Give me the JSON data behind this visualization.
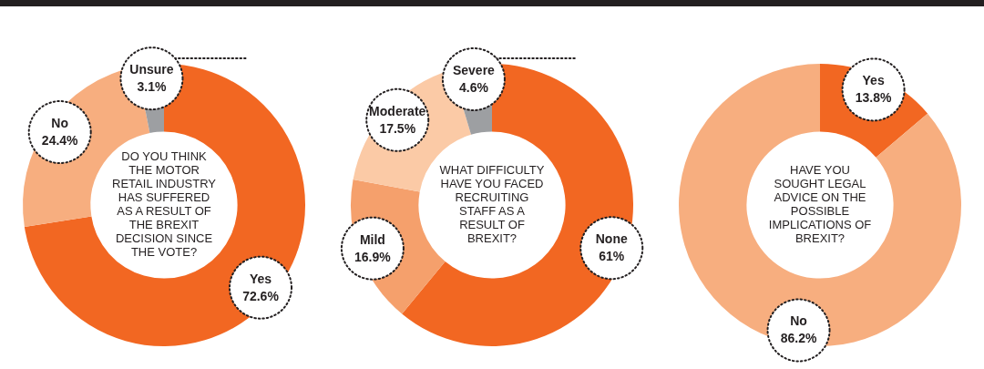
{
  "chart_data": [
    {
      "type": "donut",
      "title": "DO YOU THINK THE MOTOR RETAIL INDUSTRY HAS SUFFERED AS A RESULT OF THE BREXIT DECISION SINCE THE VOTE?",
      "categories": [
        "Yes",
        "No",
        "Unsure"
      ],
      "values": [
        72.6,
        24.4,
        3.1
      ],
      "value_labels": [
        "72.6%",
        "24.4%",
        "3.1%"
      ],
      "colors": [
        "#f26722",
        "#f7ae7f",
        "#9d9fa2"
      ],
      "legend": false
    },
    {
      "type": "donut",
      "title": "WHAT DIFFICULTY HAVE YOU FACED RECRUITING STAFF AS A RESULT OF BREXIT?",
      "categories": [
        "None",
        "Mild",
        "Moderate",
        "Severe"
      ],
      "values": [
        61,
        16.9,
        17.5,
        4.6
      ],
      "value_labels": [
        "61%",
        "16.9%",
        "17.5%",
        "4.6%"
      ],
      "colors": [
        "#f26722",
        "#f5a06c",
        "#fbcaa6",
        "#9d9fa2"
      ],
      "legend": false
    },
    {
      "type": "donut",
      "title": "HAVE YOU SOUGHT LEGAL ADVICE ON THE POSSIBLE IMPLICATIONS OF BREXIT?",
      "categories": [
        "Yes",
        "No"
      ],
      "values": [
        13.8,
        86.2
      ],
      "value_labels": [
        "13.8%",
        "86.2%"
      ],
      "colors": [
        "#f26722",
        "#f7ae7f"
      ],
      "legend": false
    }
  ]
}
